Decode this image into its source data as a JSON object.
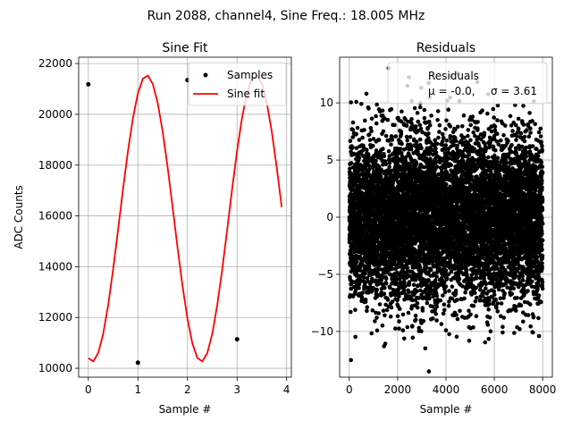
{
  "figure": {
    "suptitle": "Run 2088, channel4, Sine Freq.: 18.005 MHz"
  },
  "chart_data": [
    {
      "type": "line",
      "title": "Sine Fit",
      "xlabel": "Sample #",
      "ylabel": "ADC Counts",
      "xlim": [
        -0.195,
        4.095
      ],
      "ylim": [
        9650,
        22250
      ],
      "xticks": [
        0,
        1,
        2,
        3,
        4
      ],
      "yticks": [
        10000,
        12000,
        14000,
        16000,
        18000,
        20000,
        22000
      ],
      "grid": true,
      "legend_position": "top-right",
      "series": [
        {
          "name": "Samples",
          "kind": "scatter",
          "color": "#000000",
          "x": [
            0,
            1,
            2,
            3
          ],
          "y": [
            21180,
            10220,
            21350,
            11140
          ]
        },
        {
          "name": "Sine fit",
          "kind": "line",
          "color": "#ff0000",
          "fit": {
            "mean": 15900,
            "amplitude": 5640,
            "period": 2.2,
            "phase": 4.49
          },
          "x_range": [
            0,
            3.9
          ],
          "x_step": 0.1
        }
      ]
    },
    {
      "type": "scatter",
      "title": "Residuals",
      "xlabel": "Sample #",
      "ylabel": "",
      "xlim": [
        -400,
        8400
      ],
      "ylim": [
        -14,
        14
      ],
      "xticks": [
        0,
        2000,
        4000,
        6000,
        8000
      ],
      "yticks": [
        -10,
        -5,
        0,
        5,
        10
      ],
      "grid": true,
      "legend_position": "top-right",
      "series": [
        {
          "name": "Residuals",
          "color": "#000000",
          "n_points": 8000,
          "mean": -0.0,
          "std": 3.61,
          "x_range": [
            0,
            8000
          ]
        }
      ],
      "legend": {
        "label": "Residuals",
        "stats_mu": "μ = -0.0,",
        "stats_sigma": "σ = 3.61"
      }
    }
  ]
}
